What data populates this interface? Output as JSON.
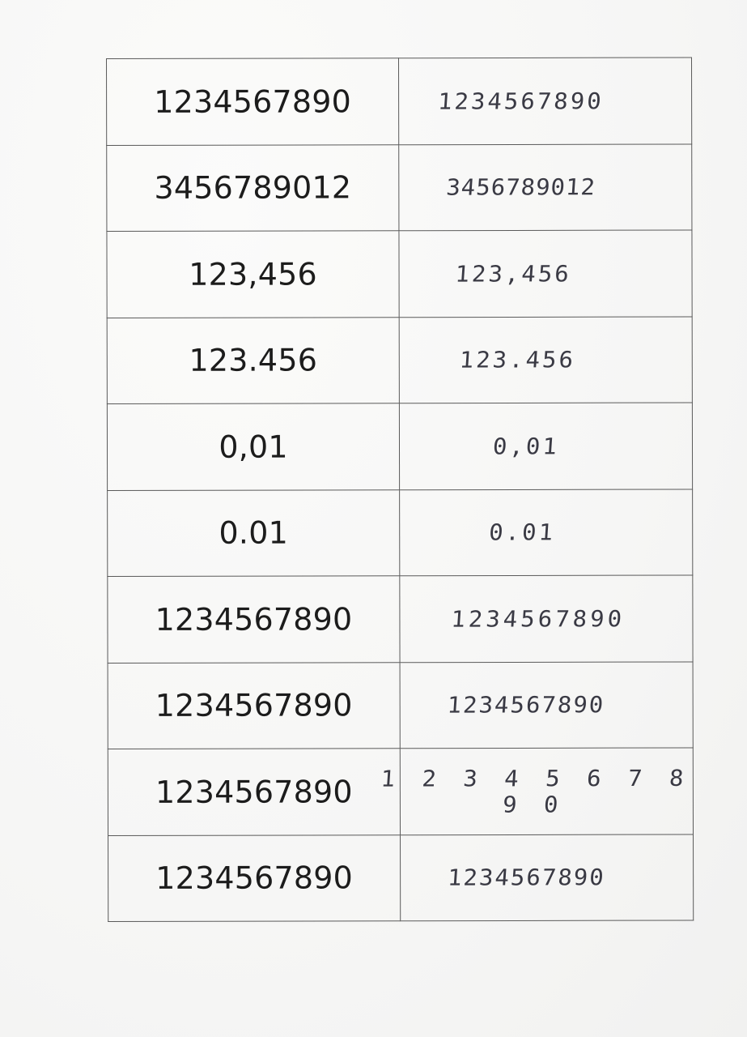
{
  "rows": [
    {
      "printed": "1234567890",
      "handwritten": "1234567890"
    },
    {
      "printed": "3456789012",
      "handwritten": "3456789012"
    },
    {
      "printed": "123,456",
      "handwritten": "123,456"
    },
    {
      "printed": "123.456",
      "handwritten": "123.456"
    },
    {
      "printed": "0,01",
      "handwritten": "0,01"
    },
    {
      "printed": "0.01",
      "handwritten": "0.01"
    },
    {
      "printed": "1234567890",
      "handwritten": "1234567890"
    },
    {
      "printed": "1234567890",
      "handwritten": "1234567890"
    },
    {
      "printed": "1234567890",
      "handwritten": "1 2 3 4 5 6 7 8 9 0"
    },
    {
      "printed": "1234567890",
      "handwritten": "1234567890"
    }
  ]
}
